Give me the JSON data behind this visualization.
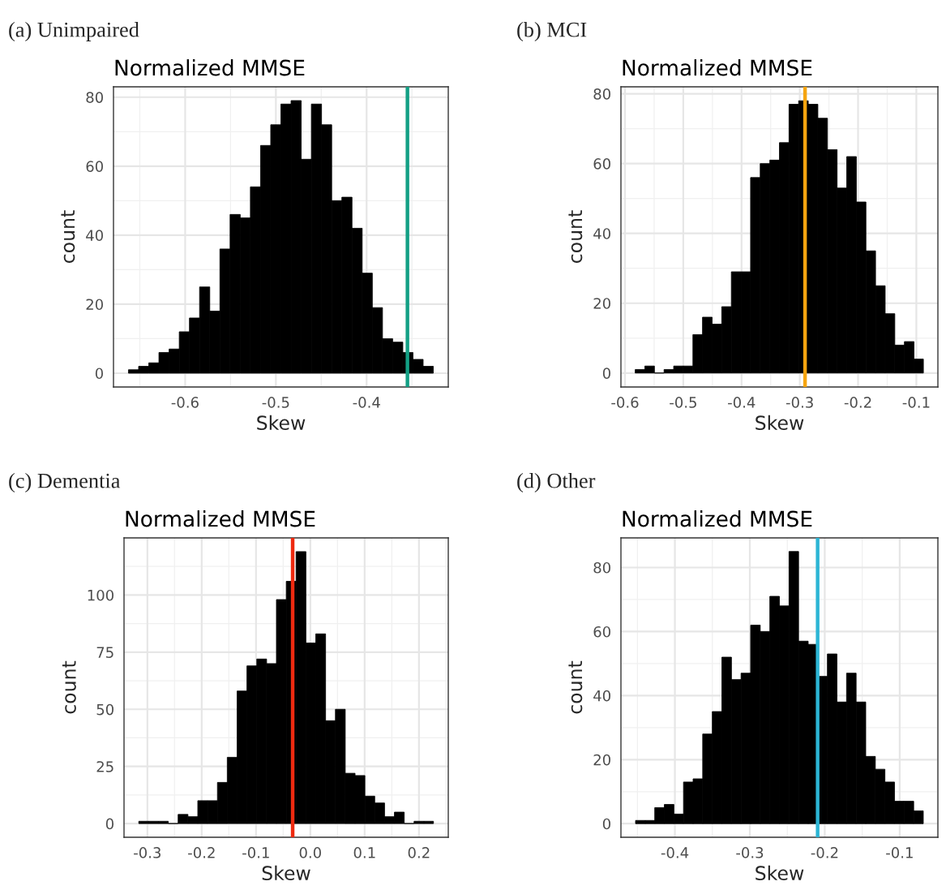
{
  "chart_data": [
    {
      "type": "histogram",
      "title": "Normalized MMSE",
      "xlabel": "Skew",
      "ylabel": "count",
      "annotations": [
        "(a) Unimpaired"
      ],
      "color": "#000000",
      "bins": [
        -0.6625,
        -0.6513,
        -0.6401,
        -0.6289,
        -0.6177,
        -0.6065,
        -0.5953,
        -0.5841,
        -0.5729,
        -0.5617,
        -0.5505,
        -0.5393,
        -0.5281,
        -0.5169,
        -0.5057,
        -0.4945,
        -0.4833,
        -0.4721,
        -0.4609,
        -0.4497,
        -0.4385,
        -0.4273,
        -0.4161,
        -0.4049,
        -0.3937,
        -0.3825,
        -0.3713,
        -0.3601,
        -0.3489,
        -0.3377,
        -0.3265
      ],
      "values": [
        1,
        2,
        3,
        6,
        7,
        12,
        16,
        25,
        18,
        36,
        46,
        45,
        54,
        66,
        72,
        78,
        79,
        62,
        78,
        72,
        50,
        51,
        42,
        29,
        19,
        10,
        9,
        6,
        4,
        2
      ],
      "ref_lines": [
        {
          "axis": "x",
          "value": -0.355,
          "color": "#13a085"
        }
      ],
      "xlim": [
        -0.679,
        -0.31
      ],
      "xticks": [
        -0.6,
        -0.5,
        -0.4
      ],
      "ylim": [
        -4,
        83
      ],
      "yticks": [
        0,
        20,
        40,
        60,
        80
      ],
      "grid": true
    },
    {
      "type": "histogram",
      "title": "Normalized MMSE",
      "xlabel": "Skew",
      "ylabel": "count",
      "annotations": [
        "(b) MCI"
      ],
      "color": "#000000",
      "bins": [
        -0.5825,
        -0.566,
        -0.5495,
        -0.533,
        -0.5165,
        -0.5,
        -0.4835,
        -0.467,
        -0.4505,
        -0.434,
        -0.4175,
        -0.401,
        -0.3845,
        -0.368,
        -0.3515,
        -0.335,
        -0.3185,
        -0.302,
        -0.2855,
        -0.269,
        -0.2525,
        -0.236,
        -0.2195,
        -0.203,
        -0.1865,
        -0.17,
        -0.1535,
        -0.137,
        -0.1205,
        -0.104,
        -0.0879
      ],
      "values": [
        1,
        2,
        0,
        1,
        2,
        2,
        11,
        16,
        14,
        19,
        29,
        29,
        56,
        60,
        61,
        66,
        77,
        78,
        77,
        73,
        64,
        53,
        62,
        49,
        35,
        25,
        17,
        8,
        9,
        4
      ],
      "ref_lines": [
        {
          "axis": "x",
          "value": -0.291,
          "color": "#f5a40f"
        }
      ],
      "xlim": [
        -0.607,
        -0.063
      ],
      "xticks": [
        -0.6,
        -0.5,
        -0.4,
        -0.3,
        -0.2,
        -0.1
      ],
      "ylim": [
        -4,
        82
      ],
      "yticks": [
        0,
        20,
        40,
        60,
        80
      ],
      "grid": true
    },
    {
      "type": "histogram",
      "title": "Normalized MMSE",
      "xlabel": "Skew",
      "ylabel": "count",
      "annotations": [
        "(c) Dementia"
      ],
      "color": "#000000",
      "bins": [
        -0.3158,
        -0.2977,
        -0.2796,
        -0.2615,
        -0.2434,
        -0.2253,
        -0.2072,
        -0.1891,
        -0.171,
        -0.1529,
        -0.1348,
        -0.1167,
        -0.0986,
        -0.0805,
        -0.0624,
        -0.0443,
        -0.0262,
        -0.0081,
        0.01,
        0.0281,
        0.0462,
        0.0643,
        0.0824,
        0.1005,
        0.1186,
        0.1367,
        0.1548,
        0.1729,
        0.191,
        0.2091,
        0.2267
      ],
      "values": [
        1,
        1,
        1,
        0,
        4,
        3,
        10,
        10,
        18,
        29,
        58,
        69,
        72,
        70,
        98,
        106,
        119,
        79,
        83,
        45,
        50,
        22,
        21,
        12,
        9,
        3,
        5,
        0,
        1,
        1
      ],
      "ref_lines": [
        {
          "axis": "x",
          "value": -0.0325,
          "color": "#ee2a10"
        }
      ],
      "xlim": [
        -0.343,
        0.254
      ],
      "xticks": [
        -0.3,
        -0.2,
        -0.1,
        {
          "value": 0,
          "label": "0.0"
        },
        0.1,
        0.2
      ],
      "ylim": [
        -6,
        125
      ],
      "yticks": [
        0,
        25,
        50,
        75,
        100
      ],
      "grid": true
    },
    {
      "type": "histogram",
      "title": "Normalized MMSE",
      "xlabel": "Skew",
      "ylabel": "count",
      "annotations": [
        "(d) Other"
      ],
      "color": "#000000",
      "bins": [
        -0.4525,
        -0.4397,
        -0.4269,
        -0.4141,
        -0.4013,
        -0.3885,
        -0.3757,
        -0.3629,
        -0.3501,
        -0.3373,
        -0.3245,
        -0.3117,
        -0.2989,
        -0.2861,
        -0.2733,
        -0.2605,
        -0.2477,
        -0.2349,
        -0.2221,
        -0.2093,
        -0.1965,
        -0.1837,
        -0.1709,
        -0.1581,
        -0.1453,
        -0.1325,
        -0.1197,
        -0.1069,
        -0.0941,
        -0.0813,
        -0.0685
      ],
      "values": [
        1,
        1,
        5,
        6,
        3,
        13,
        14,
        28,
        35,
        52,
        45,
        47,
        62,
        60,
        71,
        68,
        85,
        57,
        56,
        46,
        53,
        38,
        47,
        38,
        21,
        17,
        13,
        7,
        7,
        4
      ],
      "ref_lines": [
        {
          "axis": "x",
          "value": -0.2095,
          "color": "#2cb5d5"
        }
      ],
      "xlim": [
        -0.472,
        -0.049
      ],
      "xticks": [
        -0.4,
        -0.3,
        -0.2,
        -0.1
      ],
      "ylim": [
        -4.25,
        89.25
      ],
      "yticks": [
        0,
        20,
        40,
        60,
        80
      ],
      "grid": true
    }
  ]
}
